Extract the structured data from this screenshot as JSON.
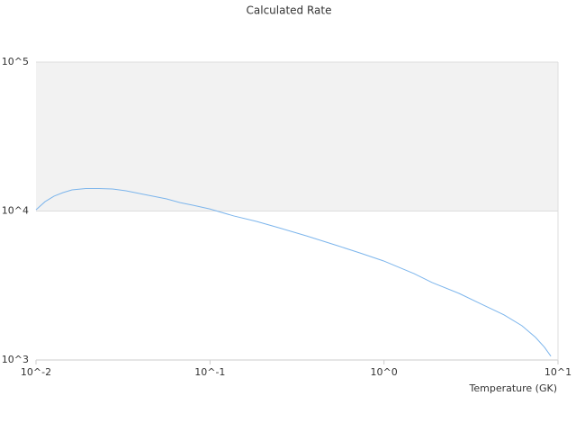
{
  "chart_data": {
    "type": "line",
    "title": "Calculated Rate",
    "xlabel": "Temperature (GK)",
    "x": [
      0.01,
      0.01127,
      0.0127,
      0.0143,
      0.0161,
      0.0193,
      0.023,
      0.0275,
      0.0329,
      0.0417,
      0.0563,
      0.0673,
      0.0802,
      0.0995,
      0.137,
      0.185,
      0.248,
      0.357,
      0.541,
      0.729,
      0.992,
      1.49,
      1.89,
      2.7,
      3.63,
      4.89,
      6.2,
      7.42,
      8.35,
      9.1
    ],
    "series": [
      {
        "color": "#7cb5ec",
        "values": [
          10200,
          11560,
          12590,
          13300,
          13870,
          14170,
          14170,
          14060,
          13680,
          12940,
          12070,
          11400,
          10930,
          10340,
          9270,
          8520,
          7730,
          6820,
          5850,
          5230,
          4630,
          3800,
          3310,
          2800,
          2370,
          2010,
          1700,
          1420,
          1220,
          1060
        ]
      }
    ],
    "xlim": [
      0.01,
      10
    ],
    "xticks": [
      {
        "value": 0.01,
        "label": "10^-2"
      },
      {
        "value": 0.1,
        "label": "10^-1"
      },
      {
        "value": 1,
        "label": "10^0"
      },
      {
        "value": 10,
        "label": "10^1"
      }
    ],
    "ylim": [
      1000,
      100000
    ],
    "yticks": [
      {
        "value": 1000,
        "label": "10^3"
      },
      {
        "value": 10000,
        "label": "10^4"
      },
      {
        "value": 100000,
        "label": "10^5"
      }
    ],
    "xlog": true,
    "ylog": true,
    "grid": true,
    "band_color": "#f2f2f2"
  }
}
